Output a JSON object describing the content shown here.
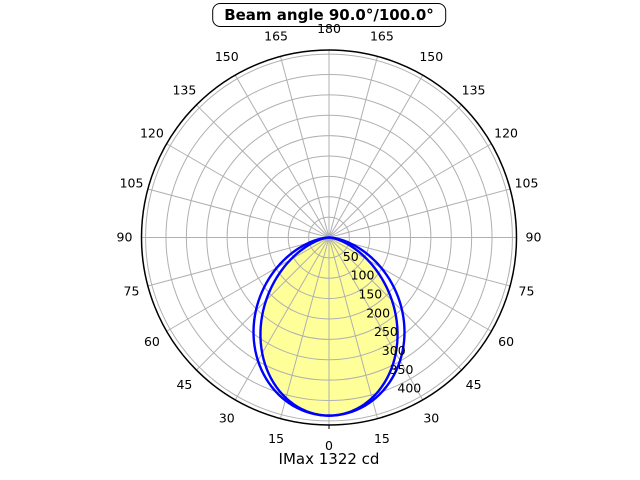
{
  "title": "Beam angle 90.0°/100.0°",
  "footer": "IMax 1322 cd",
  "chart_data": {
    "type": "polar",
    "subtype": "photometric-intensity-distribution",
    "title": "Beam angle 90.0°/100.0°",
    "annotation": "IMax 1322 cd",
    "imax_cd": 1322,
    "beam_angles_deg": [
      90.0,
      100.0
    ],
    "orientation": "0deg-at-bottom-mirrored-left-right",
    "angle_step_deg": 15,
    "angle_ticks_deg": [
      0,
      15,
      30,
      45,
      60,
      75,
      90,
      105,
      120,
      135,
      150,
      165,
      180
    ],
    "r_ticks": [
      50,
      100,
      150,
      200,
      250,
      300,
      350,
      400
    ],
    "r_grid": [
      50,
      100,
      150,
      200,
      250,
      300,
      350,
      400,
      450
    ],
    "r_axis_max": 460,
    "r_label_angle_deg": 22.5,
    "grid": true,
    "legend": false,
    "samples_deg": [
      0,
      15,
      30,
      45,
      60,
      75,
      90
    ],
    "series": [
      {
        "name": "beam-90deg",
        "beam_angle_deg": 90.0,
        "peak": 437,
        "intensity": [
          437,
          408,
          328,
          219,
          109,
          29,
          0
        ],
        "fill": "#ffff99",
        "stroke": "#0000ff"
      },
      {
        "name": "beam-100deg",
        "beam_angle_deg": 100.0,
        "peak": 437,
        "intensity": [
          437,
          414,
          349,
          254,
          147,
          52,
          0
        ],
        "fill": "none",
        "stroke": "#0000ff"
      }
    ],
    "colors": {
      "grid": "#b0b0b0",
      "axis": "#000000",
      "curve": "#0000ff",
      "fill": "#ffff99",
      "background": "#ffffff",
      "text": "#000000"
    }
  }
}
